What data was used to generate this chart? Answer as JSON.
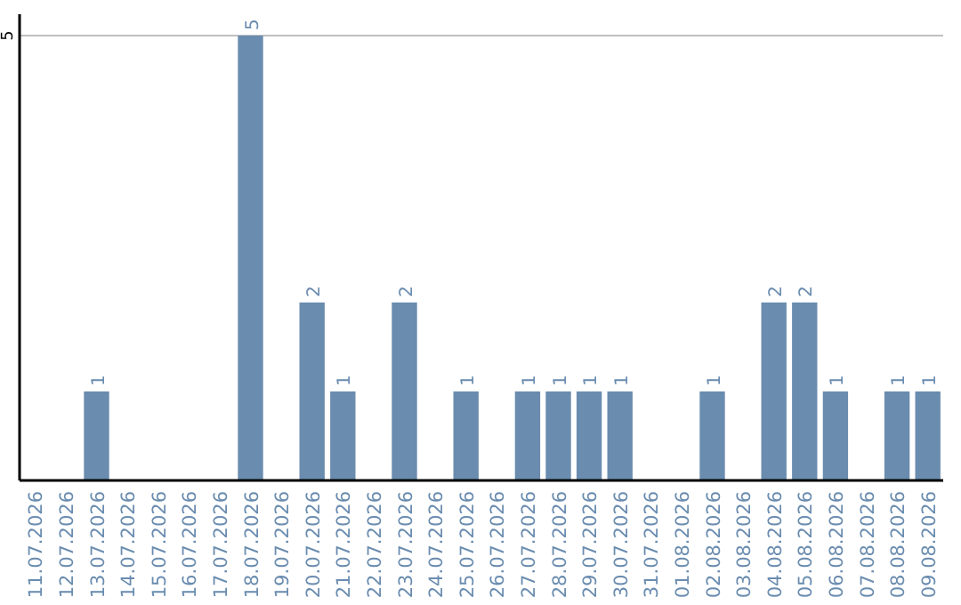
{
  "chart_data": {
    "type": "bar",
    "categories": [
      "11.07.2026",
      "12.07.2026",
      "13.07.2026",
      "14.07.2026",
      "15.07.2026",
      "16.07.2026",
      "17.07.2026",
      "18.07.2026",
      "19.07.2026",
      "20.07.2026",
      "21.07.2026",
      "22.07.2026",
      "23.07.2026",
      "24.07.2026",
      "25.07.2026",
      "26.07.2026",
      "27.07.2026",
      "28.07.2026",
      "29.07.2026",
      "30.07.2026",
      "31.07.2026",
      "01.08.2026",
      "02.08.2026",
      "03.08.2026",
      "04.08.2026",
      "05.08.2026",
      "06.08.2026",
      "07.08.2026",
      "08.08.2026",
      "09.08.2026"
    ],
    "values": [
      0,
      0,
      1,
      0,
      0,
      0,
      0,
      5,
      0,
      2,
      1,
      0,
      2,
      0,
      1,
      0,
      1,
      1,
      1,
      1,
      0,
      0,
      1,
      0,
      2,
      2,
      1,
      0,
      1,
      1
    ],
    "value_labels": [
      null,
      null,
      "1",
      null,
      null,
      null,
      null,
      "5",
      null,
      "2",
      "1",
      null,
      "2",
      null,
      "1",
      null,
      "1",
      "1",
      "1",
      "1",
      null,
      null,
      "1",
      null,
      "2",
      "2",
      "1",
      null,
      "1",
      "1"
    ],
    "color": "#6a8caf",
    "ylim": [
      0,
      5
    ],
    "yticks": [
      5
    ],
    "ref_lines": [
      {
        "axis": "y",
        "value": 5,
        "color": "#c0c0c0"
      }
    ]
  }
}
